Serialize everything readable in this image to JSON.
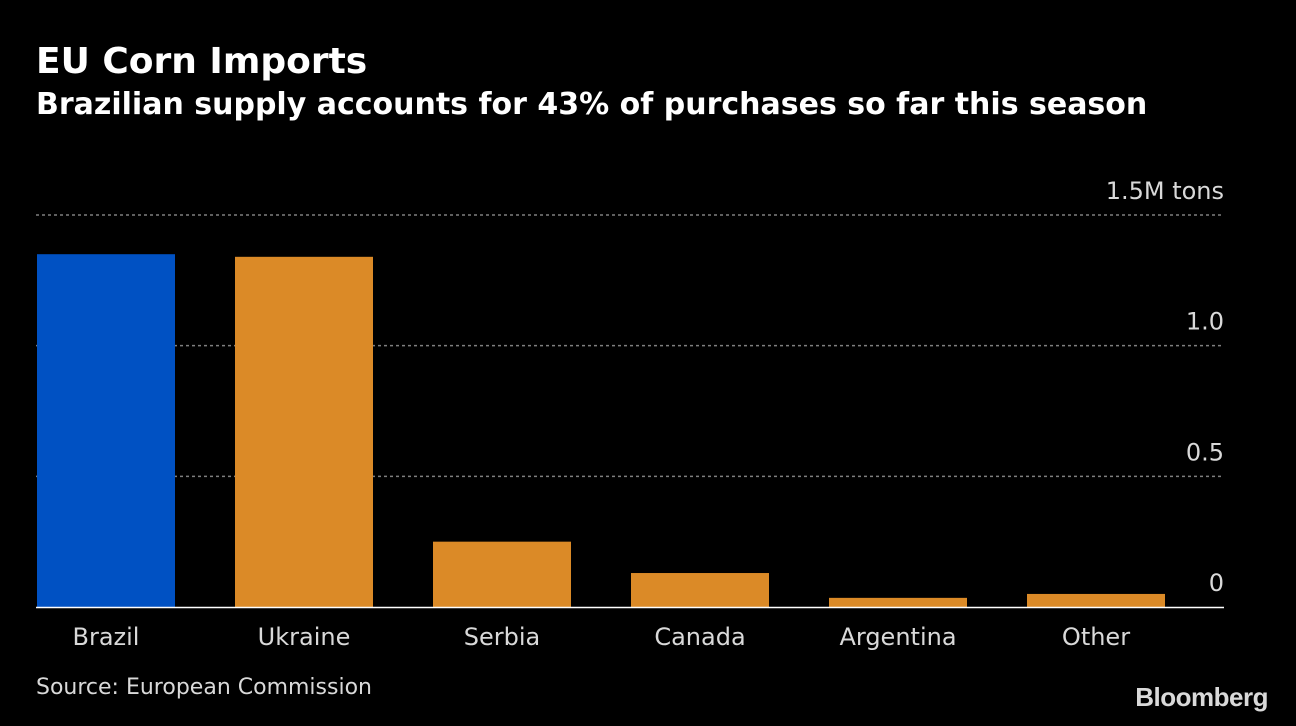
{
  "header": {
    "title": "EU Corn Imports",
    "subtitle": "Brazilian supply accounts for 43% of purchases so far this season"
  },
  "footer": {
    "source": "Source: European Commission",
    "brand": "Bloomberg"
  },
  "chart_data": {
    "type": "bar",
    "title": "EU Corn Imports",
    "subtitle": "Brazilian supply accounts for 43% of purchases so far this season",
    "categories": [
      "Brazil",
      "Ukraine",
      "Serbia",
      "Canada",
      "Argentina",
      "Other"
    ],
    "values": [
      1.35,
      1.34,
      0.25,
      0.13,
      0.035,
      0.05
    ],
    "bar_colors": [
      "#0051c3",
      "#db8a27",
      "#db8a27",
      "#db8a27",
      "#db8a27",
      "#db8a27"
    ],
    "y_ticks": [
      {
        "value": 0,
        "label": "0"
      },
      {
        "value": 0.5,
        "label": "0.5"
      },
      {
        "value": 1.0,
        "label": "1.0"
      },
      {
        "value": 1.5,
        "label": "1.5M tons"
      }
    ],
    "ylim": [
      0,
      1.5
    ],
    "xlabel": "",
    "ylabel": "",
    "grid": true,
    "colors": {
      "background": "#000000",
      "gridline": "#7f7f7f",
      "baseline": "#ffffff",
      "tick_label": "#d9d9d9"
    }
  }
}
